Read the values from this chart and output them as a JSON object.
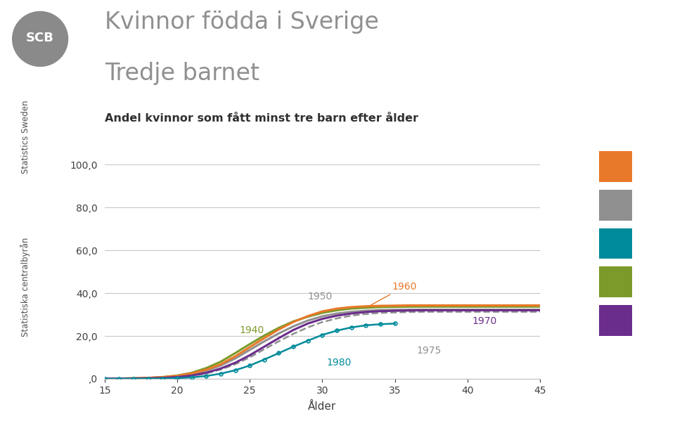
{
  "title_line1": "Kvinnor födda i Sverige",
  "title_line2": "Tredje barnet",
  "subtitle": "Andel kvinnor som fått minst tre barn efter ålder",
  "xlabel": "Ålder",
  "xlim": [
    15,
    45
  ],
  "ylim": [
    0,
    100
  ],
  "yticks": [
    0,
    20,
    40,
    60,
    80,
    100
  ],
  "ytick_labels": [
    ",0",
    "20,0",
    "40,0",
    "60,0",
    "80,0",
    "100,0"
  ],
  "xticks": [
    15,
    20,
    25,
    30,
    35,
    40,
    45
  ],
  "background_color": "#ffffff",
  "series": {
    "1960": {
      "color": "#E8792A",
      "style": "solid",
      "linewidth": 2.2,
      "x": [
        15,
        16,
        17,
        18,
        19,
        20,
        21,
        22,
        23,
        24,
        25,
        26,
        27,
        28,
        29,
        30,
        31,
        32,
        33,
        34,
        35,
        36,
        37,
        38,
        39,
        40,
        41,
        42,
        43,
        44,
        45
      ],
      "y": [
        0.1,
        0.15,
        0.25,
        0.45,
        0.8,
        1.4,
        2.5,
        4.2,
        6.8,
        10.5,
        14.8,
        19.0,
        23.0,
        26.5,
        29.3,
        31.5,
        32.8,
        33.5,
        33.9,
        34.1,
        34.2,
        34.3,
        34.3,
        34.3,
        34.3,
        34.3,
        34.3,
        34.3,
        34.3,
        34.3,
        34.3
      ]
    },
    "1950": {
      "color": "#909090",
      "style": "solid",
      "linewidth": 2.2,
      "x": [
        15,
        16,
        17,
        18,
        19,
        20,
        21,
        22,
        23,
        24,
        25,
        26,
        27,
        28,
        29,
        30,
        31,
        32,
        33,
        34,
        35,
        36,
        37,
        38,
        39,
        40,
        41,
        42,
        43,
        44,
        45
      ],
      "y": [
        0.05,
        0.1,
        0.2,
        0.38,
        0.7,
        1.2,
        2.2,
        3.8,
        6.2,
        9.5,
        13.5,
        17.5,
        21.2,
        24.5,
        27.2,
        29.2,
        30.5,
        31.3,
        31.8,
        32.1,
        32.2,
        32.3,
        32.3,
        32.3,
        32.3,
        32.3,
        32.3,
        32.3,
        32.3,
        32.3,
        32.3
      ]
    },
    "1940": {
      "color": "#7B9A2A",
      "style": "solid",
      "linewidth": 2.2,
      "x": [
        15,
        16,
        17,
        18,
        19,
        20,
        21,
        22,
        23,
        24,
        25,
        26,
        27,
        28,
        29,
        30,
        31,
        32,
        33,
        34,
        35,
        36,
        37,
        38,
        39,
        40,
        41,
        42,
        43,
        44,
        45
      ],
      "y": [
        0.05,
        0.1,
        0.2,
        0.4,
        0.8,
        1.5,
        2.8,
        5.0,
        8.0,
        12.0,
        16.2,
        20.2,
        23.8,
        26.8,
        29.0,
        30.8,
        32.0,
        32.8,
        33.2,
        33.5,
        33.6,
        33.7,
        33.7,
        33.7,
        33.7,
        33.7,
        33.7,
        33.7,
        33.7,
        33.7,
        33.7
      ]
    },
    "1970": {
      "color": "#6B2D8B",
      "style": "solid",
      "linewidth": 2.2,
      "x": [
        15,
        16,
        17,
        18,
        19,
        20,
        21,
        22,
        23,
        24,
        25,
        26,
        27,
        28,
        29,
        30,
        31,
        32,
        33,
        34,
        35,
        36,
        37,
        38,
        39,
        40,
        41,
        42,
        43,
        44,
        45
      ],
      "y": [
        0.02,
        0.05,
        0.1,
        0.2,
        0.4,
        0.8,
        1.5,
        2.8,
        4.8,
        7.5,
        11.0,
        15.0,
        19.0,
        22.8,
        25.8,
        28.0,
        29.5,
        30.5,
        31.2,
        31.6,
        31.8,
        31.9,
        32.0,
        32.0,
        32.0,
        32.0,
        32.0,
        32.0,
        32.0,
        32.0,
        32.0
      ]
    },
    "1975": {
      "color": "#909090",
      "style": "dashed",
      "linewidth": 1.8,
      "x": [
        15,
        16,
        17,
        18,
        19,
        20,
        21,
        22,
        23,
        24,
        25,
        26,
        27,
        28,
        29,
        30,
        31,
        32,
        33,
        34,
        35,
        36,
        37,
        38,
        39,
        40,
        41,
        42,
        43,
        44,
        45
      ],
      "y": [
        0.01,
        0.03,
        0.07,
        0.15,
        0.3,
        0.65,
        1.3,
        2.5,
        4.3,
        6.8,
        10.0,
        13.8,
        17.5,
        21.0,
        24.0,
        26.5,
        28.2,
        29.5,
        30.3,
        30.8,
        31.0,
        31.2,
        31.3,
        31.3,
        31.3,
        31.3,
        31.3,
        31.3,
        31.3,
        31.3,
        31.3
      ]
    },
    "1980": {
      "color": "#008B9B",
      "style": "solid",
      "linewidth": 1.8,
      "marker": "o",
      "markersize": 3.5,
      "x": [
        15,
        16,
        17,
        18,
        19,
        20,
        21,
        22,
        23,
        24,
        25,
        26,
        27,
        28,
        29,
        30,
        31,
        32,
        33,
        34,
        35
      ],
      "y": [
        0.01,
        0.02,
        0.04,
        0.08,
        0.15,
        0.3,
        0.65,
        1.3,
        2.4,
        4.0,
        6.2,
        9.0,
        12.0,
        15.0,
        17.8,
        20.5,
        22.5,
        24.0,
        25.0,
        25.5,
        25.8
      ]
    }
  },
  "legend_colors": [
    "#E8792A",
    "#909090",
    "#008B9B",
    "#7B9A2A",
    "#6B2D8B"
  ],
  "grid_color": "#C8C8C8",
  "title_color": "#909090",
  "subtitle_color": "#303030",
  "left_text_color": "#505050"
}
